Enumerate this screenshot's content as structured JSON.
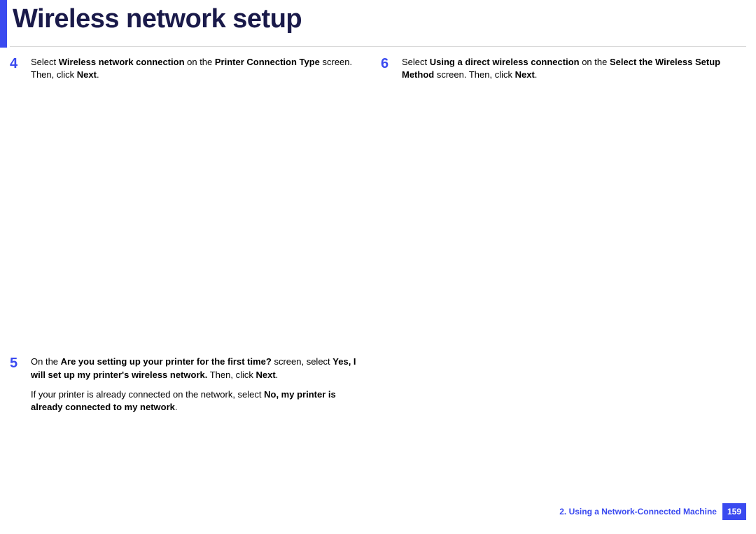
{
  "title": "Wireless network setup",
  "colors": {
    "accent": "#3a4af0",
    "titleColor": "#1a1a4a",
    "text": "#000000",
    "divider": "#d9d9d9",
    "background": "#ffffff"
  },
  "steps": {
    "s4": {
      "num": "4",
      "t1": "Select ",
      "b1": "Wireless network connection",
      "t2": " on the ",
      "b2": "Printer Connection Type",
      "t3": " screen. Then, click ",
      "b3": "Next",
      "t4": "."
    },
    "s5": {
      "num": "5",
      "p1_t1": "On the ",
      "p1_b1": "Are you setting up your printer for the first time?",
      "p1_t2": " screen, select ",
      "p1_b2": "Yes, I will set up my printer's wireless network.",
      "p1_t3": " Then, click ",
      "p1_b3": "Next",
      "p1_t4": ".",
      "p2_t1": "If your printer is already connected on the network, select ",
      "p2_b1": "No, my printer is already connected to my network",
      "p2_t2": "."
    },
    "s6": {
      "num": "6",
      "t1": "Select ",
      "b1": "Using a direct wireless connection",
      "t2": " on the ",
      "b2": "Select the Wireless Setup Method",
      "t3": " screen. Then, click ",
      "b3": "Next",
      "t4": "."
    }
  },
  "footer": {
    "section": "2.  Using a Network-Connected Machine",
    "page": "159"
  }
}
